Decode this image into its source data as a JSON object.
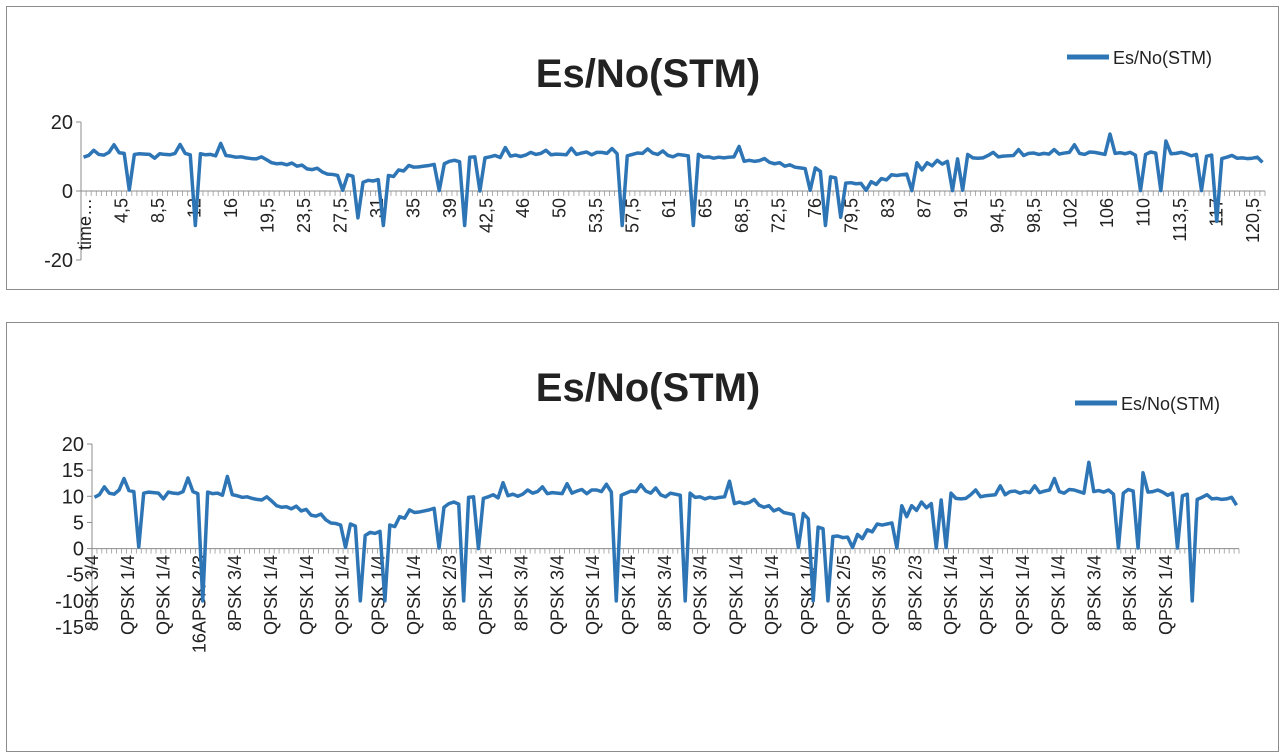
{
  "chart_data": [
    {
      "type": "line",
      "title": "Es/No(STM)",
      "xlabel": "",
      "ylabel": "",
      "ylim": [
        -20,
        20
      ],
      "yticks": [
        -20,
        0,
        20
      ],
      "grid": false,
      "legend": "top-right",
      "series_color": "#2e75b6",
      "x_tick_labels": [
        "time…",
        "4,5",
        "8,5",
        "12",
        "16",
        "19,5",
        "23,5",
        "27,5",
        "31",
        "35",
        "39",
        "42,5",
        "46",
        "50",
        "53,5",
        "57,5",
        "61",
        "65",
        "68,5",
        "72,5",
        "76",
        "79,5",
        "83",
        "87",
        "91",
        "94,5",
        "98,5",
        "102",
        "106",
        "110",
        "113,5",
        "117",
        "120,5"
      ],
      "series": [
        {
          "name": "Es/No(STM)",
          "values": [
            9.8,
            10.3,
            11.8,
            10.6,
            10.4,
            11.2,
            13.4,
            11.1,
            10.9,
            0.3,
            10.6,
            10.8,
            10.7,
            10.6,
            9.5,
            10.8,
            10.6,
            10.5,
            10.9,
            13.5,
            10.9,
            10.5,
            -10.0,
            10.8,
            10.5,
            10.6,
            10.2,
            13.8,
            10.3,
            10.1,
            9.8,
            9.9,
            9.6,
            9.4,
            9.3,
            9.9,
            9.1,
            8.2,
            7.9,
            8.0,
            7.6,
            8.1,
            7.2,
            7.5,
            6.4,
            6.2,
            6.6,
            5.5,
            4.9,
            4.8,
            4.5,
            0.2,
            4.7,
            4.3,
            -7.8,
            2.5,
            3.1,
            2.9,
            3.3,
            -10.0,
            4.5,
            4.2,
            6.1,
            5.8,
            7.4,
            6.9,
            7.0,
            7.2,
            7.4,
            7.7,
            0.1,
            7.9,
            8.6,
            8.9,
            8.5,
            -10.0,
            9.8,
            9.9,
            0.0,
            9.6,
            9.9,
            10.3,
            9.7,
            12.6,
            10.1,
            10.4,
            10.0,
            10.4,
            11.2,
            10.6,
            10.9,
            11.8,
            10.5,
            10.7,
            10.6,
            10.5,
            12.4,
            10.6,
            11.0,
            11.3,
            10.5,
            11.2,
            11.2,
            10.9,
            12.3,
            10.8,
            -10.0,
            10.2,
            10.6,
            11.0,
            10.9,
            12.2,
            11.0,
            10.6,
            11.6,
            10.3,
            9.9,
            10.6,
            10.4,
            10.2,
            -10.0,
            10.6,
            9.8,
            9.9,
            9.5,
            9.8,
            9.6,
            9.8,
            9.9,
            12.9,
            8.6,
            8.9,
            8.6,
            8.8,
            9.4,
            8.3,
            7.9,
            8.2,
            7.2,
            7.6,
            6.9,
            6.7,
            6.5,
            0.2,
            6.7,
            5.7,
            -10.0,
            4.1,
            3.8,
            -7.6,
            2.3,
            2.4,
            2.1,
            2.2,
            0.2,
            2.7,
            1.9,
            3.6,
            3.2,
            4.7,
            4.5,
            4.7,
            4.9,
            0.1,
            8.2,
            6.1,
            8.2,
            7.3,
            8.9,
            7.8,
            8.6,
            0.1,
            9.3,
            0.2,
            10.6,
            9.6,
            9.5,
            9.6,
            10.3,
            11.2,
            9.9,
            10.1,
            10.2,
            10.3,
            12.0,
            10.3,
            10.9,
            11.0,
            10.6,
            10.9,
            10.7,
            12.0,
            10.7,
            11.0,
            11.2,
            13.4,
            10.9,
            10.6,
            11.3,
            11.2,
            10.9,
            10.6,
            16.5,
            10.9,
            11.1,
            10.8,
            11.2,
            10.4,
            0.1,
            10.6,
            11.3,
            11.0,
            0.1,
            14.5,
            10.8,
            10.9,
            11.2,
            10.8,
            10.2,
            10.6,
            0.1,
            10.1,
            10.4,
            -8.8,
            9.4,
            9.8,
            10.3,
            9.5,
            9.6,
            9.4,
            9.5,
            9.8,
            8.3
          ]
        }
      ]
    },
    {
      "type": "line",
      "title": "Es/No(STM)",
      "xlabel": "",
      "ylabel": "",
      "ylim": [
        -15,
        20
      ],
      "yticks": [
        -15,
        -10,
        -5,
        0,
        5,
        10,
        15,
        20
      ],
      "grid": false,
      "legend": "top-right",
      "series_color": "#2e75b6",
      "x_tick_labels": [
        "8PSK 3/4",
        "QPSK 1/4",
        "QPSK 1/4",
        "16APSK 2/3",
        "8PSK 3/4",
        "QPSK 1/4",
        "QPSK 1/4",
        "QPSK 1/4",
        "QPSK 1/4",
        "QPSK 1/4",
        "8PSK 2/3",
        "QPSK 1/4",
        "8PSK 3/4",
        "QPSK 3/4",
        "QPSK 1/4",
        "QPSK 1/4",
        "8PSK 3/4",
        "QPSK 3/4",
        "QPSK 1/4",
        "QPSK 1/4",
        "QPSK 1/4",
        "QPSK 2/5",
        "QPSK 3/5",
        "8PSK 2/3",
        "QPSK 1/4",
        "QPSK 1/4",
        "QPSK 1/4",
        "QPSK 1/4",
        "8PSK 3/4",
        "8PSK 3/4",
        "QPSK 1/4"
      ],
      "series": [
        {
          "name": "Es/No(STM)",
          "values": [
            9.8,
            10.3,
            11.8,
            10.6,
            10.4,
            11.2,
            13.4,
            11.1,
            10.9,
            0.3,
            10.6,
            10.8,
            10.7,
            10.6,
            9.5,
            10.8,
            10.6,
            10.5,
            10.9,
            13.5,
            10.9,
            10.5,
            -10.0,
            10.8,
            10.5,
            10.6,
            10.2,
            13.8,
            10.3,
            10.1,
            9.8,
            9.9,
            9.6,
            9.4,
            9.3,
            9.9,
            9.1,
            8.2,
            7.9,
            8.0,
            7.6,
            8.1,
            7.2,
            7.5,
            6.4,
            6.2,
            6.6,
            5.5,
            4.9,
            4.8,
            4.5,
            0.2,
            4.7,
            4.3,
            -10.0,
            2.5,
            3.1,
            2.9,
            3.3,
            -10.0,
            4.5,
            4.2,
            6.1,
            5.8,
            7.4,
            6.9,
            7.0,
            7.2,
            7.4,
            7.7,
            0.1,
            7.9,
            8.6,
            8.9,
            8.5,
            -10.0,
            9.8,
            9.9,
            0.0,
            9.6,
            9.9,
            10.3,
            9.7,
            12.6,
            10.1,
            10.4,
            10.0,
            10.4,
            11.2,
            10.6,
            10.9,
            11.8,
            10.5,
            10.7,
            10.6,
            10.5,
            12.4,
            10.6,
            11.0,
            11.3,
            10.5,
            11.2,
            11.2,
            10.9,
            12.3,
            10.8,
            -10.0,
            10.2,
            10.6,
            11.0,
            10.9,
            12.2,
            11.0,
            10.6,
            11.6,
            10.3,
            9.9,
            10.6,
            10.4,
            10.2,
            -10.0,
            10.6,
            9.8,
            9.9,
            9.5,
            9.8,
            9.6,
            9.8,
            9.9,
            12.9,
            8.6,
            8.9,
            8.6,
            8.8,
            9.4,
            8.3,
            7.9,
            8.2,
            7.2,
            7.6,
            6.9,
            6.7,
            6.5,
            0.2,
            6.7,
            5.7,
            -10.0,
            4.1,
            3.8,
            -10.0,
            2.3,
            2.4,
            2.1,
            2.2,
            0.2,
            2.7,
            1.9,
            3.6,
            3.2,
            4.7,
            4.5,
            4.7,
            4.9,
            0.1,
            8.2,
            6.1,
            8.2,
            7.3,
            8.9,
            7.8,
            8.6,
            0.1,
            9.3,
            0.2,
            10.6,
            9.6,
            9.5,
            9.6,
            10.3,
            11.2,
            9.9,
            10.1,
            10.2,
            10.3,
            12.0,
            10.3,
            10.9,
            11.0,
            10.6,
            10.9,
            10.7,
            12.0,
            10.7,
            11.0,
            11.2,
            13.4,
            10.9,
            10.6,
            11.3,
            11.2,
            10.9,
            10.6,
            16.5,
            10.9,
            11.1,
            10.8,
            11.2,
            10.4,
            0.1,
            10.6,
            11.3,
            11.0,
            0.1,
            14.5,
            10.8,
            10.9,
            11.2,
            10.8,
            10.2,
            10.6,
            0.1,
            10.1,
            10.4,
            -10.0,
            9.4,
            9.8,
            10.3,
            9.5,
            9.6,
            9.4,
            9.5,
            9.8,
            8.3
          ]
        }
      ]
    }
  ]
}
